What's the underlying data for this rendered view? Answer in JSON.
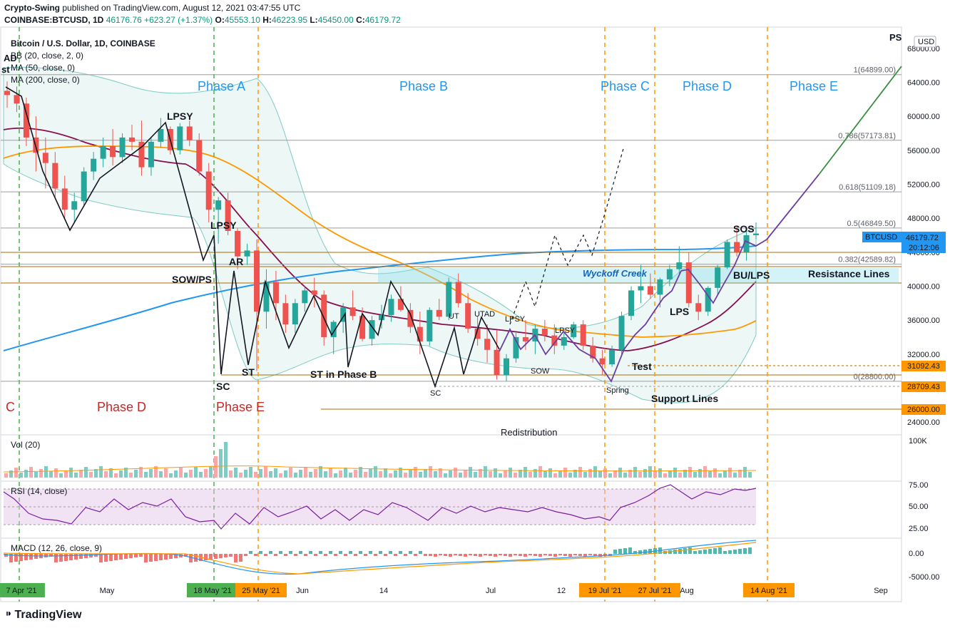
{
  "header": {
    "publisher": "Crypto-Swing",
    "published_text": "published on TradingView.com, August 12, 2021 03:47:55 UTC",
    "symbol": "COINBASE:BTCUSD, 1D",
    "last": "46176.76",
    "change": "+623.27 (+1.37%)",
    "open_label": "O:",
    "open": "45553.10",
    "high_label": "H:",
    "high": "46223.95",
    "low_label": "L:",
    "low": "45450.00",
    "close_label": "C:",
    "close": "46179.72"
  },
  "legend": {
    "title": "Bitcoin / U.S. Dollar, 1D, COINBASE",
    "bb": "BB (20, close, 2, 0)",
    "ma50": "MA (50, close, 0)",
    "ma200": "MA (200, close, 0)"
  },
  "price_axis": {
    "currency": "USD",
    "ticks": [
      "68000.00",
      "64000.00",
      "60000.00",
      "56000.00",
      "52000.00",
      "48000.00",
      "44000.00",
      "40000.00",
      "36000.00",
      "32000.00",
      "28000.00",
      "24000.00"
    ],
    "current_label": "BTCUSD",
    "current_price": "46179.72",
    "countdown": "20:12:06",
    "level_tags": [
      "31092.43",
      "28709.43",
      "26000.00"
    ]
  },
  "time_axis": {
    "ticks": [
      {
        "label": "7 Apr '21",
        "highlight": "green"
      },
      {
        "label": "May",
        "highlight": ""
      },
      {
        "label": "18 May '21",
        "highlight": "green"
      },
      {
        "label": "25 May '21",
        "highlight": "orange"
      },
      {
        "label": "Jun",
        "highlight": ""
      },
      {
        "label": "14",
        "highlight": ""
      },
      {
        "label": "Jul",
        "highlight": ""
      },
      {
        "label": "12",
        "highlight": ""
      },
      {
        "label": "19 Jul '21",
        "highlight": "orange"
      },
      {
        "label": "27 Jul '21",
        "highlight": "orange"
      },
      {
        "label": "Aug",
        "highlight": ""
      },
      {
        "label": "14 Aug '21",
        "highlight": "orange"
      },
      {
        "label": "Sep",
        "highlight": ""
      }
    ]
  },
  "fib_levels": [
    {
      "label": "1(64899.00)",
      "price": 64899
    },
    {
      "label": "0.786(57173.81)",
      "price": 57173.81
    },
    {
      "label": "0.618(51109.18)",
      "price": 51109.18
    },
    {
      "label": "0.5(46849.50)",
      "price": 46849.5
    },
    {
      "label": "0.382(42589.82)",
      "price": 42589.82
    },
    {
      "label": "0(28800.00)",
      "price": 28800
    }
  ],
  "phases_blue": [
    "Phase A",
    "Phase B",
    "Phase C",
    "Phase D",
    "Phase E"
  ],
  "phases_red": [
    "C",
    "Phase D",
    "Phase E"
  ],
  "annotations": {
    "lpsy1": "LPSY",
    "lpsy2": "LPSY",
    "sow_ps": "SOW/PS",
    "ar": "AR",
    "sc1": "SC",
    "st": "ST",
    "st_phase_b": "ST in Phase B",
    "sc2": "SC",
    "ut": "UT",
    "utad": "UTAD",
    "lpsy3": "LPSY",
    "lpsy4": "LPSY",
    "sow": "SOW",
    "spring": "Spring",
    "test": "Test",
    "lps": "LPS",
    "sos": "SOS",
    "bu_lps": "BU/LPS",
    "wyckoff_creek": "Wyckoff Creek",
    "resistance": "Resistance Lines",
    "support": "Support Lines",
    "redistribution": "Redistribution",
    "ad": "AD",
    "st_left": "st",
    "ps": "PS"
  },
  "volume": {
    "label": "Vol (20)",
    "tick": "100K"
  },
  "rsi": {
    "label": "RSI (14, close)",
    "ticks": [
      "75.00",
      "50.00",
      "25.00"
    ]
  },
  "macd": {
    "label": "MACD (12, 26, close, 9)",
    "ticks": [
      "0.00",
      "-5000.00"
    ]
  },
  "brand": "TradingView",
  "colors": {
    "up": "#26a69a",
    "down": "#ef5350",
    "ma200": "#2196f3",
    "ma50": "#ff9800",
    "bb_mid": "#880e4f",
    "phase_line": "#ff9800",
    "phase_line_green": "#4caf50"
  },
  "chart_data": {
    "type": "candlestick",
    "title": "Bitcoin / U.S. Dollar, 1D, COINBASE",
    "ylim": [
      22500,
      70500
    ],
    "x_start": "2021-04-07",
    "x_end": "2021-09-05",
    "candles": [
      [
        63000,
        64100,
        61000,
        62500
      ],
      [
        62500,
        63500,
        60500,
        61500
      ],
      [
        61500,
        62200,
        56500,
        57500
      ],
      [
        57500,
        60000,
        53500,
        55700
      ],
      [
        55700,
        57500,
        51500,
        54500
      ],
      [
        54500,
        55800,
        50500,
        51500
      ],
      [
        51500,
        53000,
        48000,
        49000
      ],
      [
        49000,
        51000,
        47500,
        50000
      ],
      [
        50000,
        54000,
        49500,
        53500
      ],
      [
        53500,
        55800,
        52500,
        55000
      ],
      [
        55000,
        57500,
        54000,
        56500
      ],
      [
        56500,
        58500,
        54200,
        55200
      ],
      [
        55200,
        58000,
        54500,
        57500
      ],
      [
        57500,
        59000,
        56000,
        57000
      ],
      [
        57000,
        59500,
        53000,
        54000
      ],
      [
        54000,
        57500,
        53000,
        57000
      ],
      [
        57000,
        59800,
        56300,
        58500
      ],
      [
        58500,
        58800,
        55500,
        56000
      ],
      [
        56000,
        59200,
        55500,
        58800
      ],
      [
        58800,
        59500,
        56500,
        57200
      ],
      [
        57200,
        58000,
        53000,
        53500
      ],
      [
        53500,
        54500,
        47500,
        49000
      ],
      [
        49000,
        50500,
        45000,
        50100
      ],
      [
        50100,
        51000,
        46000,
        46500
      ],
      [
        46500,
        46800,
        42000,
        43500
      ],
      [
        43500,
        45000,
        42500,
        44200
      ],
      [
        44200,
        45500,
        30000,
        37000
      ],
      [
        37000,
        42000,
        35000,
        40500
      ],
      [
        40500,
        41800,
        36000,
        38000
      ],
      [
        38000,
        39000,
        34500,
        35500
      ],
      [
        35500,
        38500,
        34500,
        38000
      ],
      [
        38000,
        40000,
        37000,
        39500
      ],
      [
        39500,
        41000,
        37500,
        39000
      ],
      [
        39000,
        39500,
        33000,
        34000
      ],
      [
        34000,
        36000,
        32000,
        35800
      ],
      [
        35800,
        38000,
        34500,
        37500
      ],
      [
        37500,
        39500,
        36000,
        36500
      ],
      [
        36500,
        37500,
        33500,
        33800
      ],
      [
        33800,
        36500,
        33000,
        36000
      ],
      [
        36000,
        37800,
        35000,
        36600
      ],
      [
        36600,
        39000,
        35800,
        38500
      ],
      [
        38500,
        40000,
        37000,
        37200
      ],
      [
        37200,
        38000,
        34500,
        35200
      ],
      [
        35200,
        37000,
        32000,
        33500
      ],
      [
        33500,
        37500,
        33000,
        37200
      ],
      [
        37200,
        38500,
        36000,
        36400
      ],
      [
        36400,
        41000,
        36000,
        40500
      ],
      [
        40500,
        41500,
        37500,
        38000
      ],
      [
        38000,
        39200,
        34500,
        35000
      ],
      [
        35000,
        36500,
        33000,
        33800
      ],
      [
        33800,
        35500,
        31000,
        32500
      ],
      [
        32500,
        34800,
        29000,
        29500
      ],
      [
        29500,
        32000,
        28800,
        31500
      ],
      [
        31500,
        34500,
        31000,
        34000
      ],
      [
        34000,
        36000,
        32500,
        33500
      ],
      [
        33500,
        35500,
        32000,
        35000
      ],
      [
        35000,
        36000,
        33500,
        34200
      ],
      [
        34200,
        35500,
        32000,
        33000
      ],
      [
        33000,
        34500,
        32500,
        34000
      ],
      [
        34000,
        35800,
        33800,
        35500
      ],
      [
        35500,
        36000,
        32500,
        33000
      ],
      [
        33000,
        34000,
        31000,
        31500
      ],
      [
        31500,
        32500,
        29500,
        30800
      ],
      [
        30800,
        33000,
        30500,
        32500
      ],
      [
        32500,
        37000,
        32000,
        36500
      ],
      [
        36500,
        40000,
        36000,
        39500
      ],
      [
        39500,
        42500,
        38000,
        40000
      ],
      [
        40000,
        41500,
        38500,
        39000
      ],
      [
        39000,
        41000,
        37500,
        40800
      ],
      [
        40800,
        42500,
        40000,
        42000
      ],
      [
        42000,
        44700,
        41500,
        42800
      ],
      [
        42800,
        44000,
        37500,
        38000
      ],
      [
        38000,
        39000,
        36000,
        37000
      ],
      [
        37000,
        40000,
        36500,
        39800
      ],
      [
        39800,
        42500,
        39000,
        42200
      ],
      [
        42200,
        45500,
        42000,
        45200
      ],
      [
        45200,
        47000,
        43500,
        44000
      ],
      [
        44000,
        46500,
        43000,
        46000
      ],
      [
        46000,
        47500,
        45500,
        46200
      ]
    ]
  }
}
